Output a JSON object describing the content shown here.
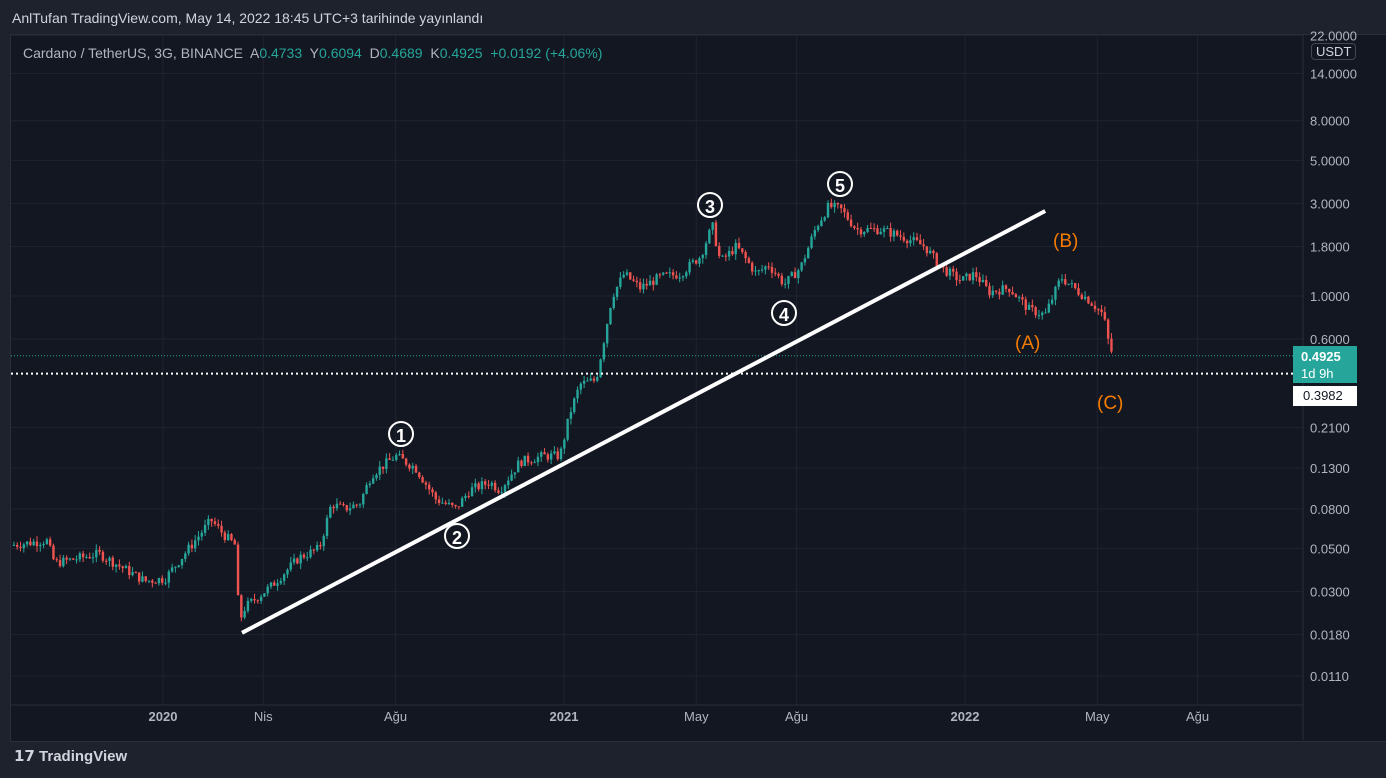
{
  "header": {
    "published": "AnlTufan TradingView.com, May 14, 2022 18:45 UTC+3 tarihinde yayınlandı"
  },
  "legend": {
    "symbol": "Cardano / TetherUS, 3G, BINANCE",
    "o_label": "A",
    "o": "0.4733",
    "h_label": "Y",
    "h": "0.6094",
    "l_label": "D",
    "l": "0.4689",
    "c_label": "K",
    "c": "0.4925",
    "change": "+0.0192",
    "change_pct": "(+4.06%)"
  },
  "price_axis": {
    "currency": "USDT",
    "last_price": "0.4925",
    "countdown": "1d 9h",
    "low_marker": "0.3982"
  },
  "logo": "TradingView",
  "colors": {
    "up": "#26a69a",
    "down": "#ef5350",
    "wave_abc": "#f57c00"
  },
  "waves": {
    "w1": "1",
    "w2": "2",
    "w3": "3",
    "w4": "4",
    "w5": "5",
    "a": "(A)",
    "b": "(B)",
    "c": "(C)"
  },
  "chart_data": {
    "type": "candlestick",
    "scale": "log",
    "title": "Cardano / TetherUS, 3G, BINANCE",
    "yticks": [
      22,
      14,
      8,
      5,
      3,
      1.8,
      1,
      0.6,
      0.21,
      0.13,
      0.08,
      0.05,
      0.03,
      0.018,
      0.011
    ],
    "ytick_labels": [
      "22.0000",
      "14.0000",
      "8.0000",
      "5.0000",
      "3.0000",
      "1.8000",
      "1.0000",
      "0.6000",
      "0.2100",
      "0.1300",
      "0.0800",
      "0.0500",
      "0.0300",
      "0.0180",
      "0.0110"
    ],
    "xticks": [
      2020.0,
      2020.25,
      2020.58,
      2021.0,
      2021.33,
      2021.58,
      2022.0,
      2022.33,
      2022.58
    ],
    "xtick_labels": [
      "2020",
      "Nis",
      "Ağu",
      "2021",
      "May",
      "Ağu",
      "2022",
      "May",
      "Ağu"
    ],
    "price_path": [
      [
        2019.62,
        0.052
      ],
      [
        2019.71,
        0.055
      ],
      [
        2019.73,
        0.042
      ],
      [
        2019.84,
        0.047
      ],
      [
        2019.955,
        0.034
      ],
      [
        2020.005,
        0.035
      ],
      [
        2020.08,
        0.055
      ],
      [
        2020.12,
        0.07
      ],
      [
        2020.155,
        0.058
      ],
      [
        2020.18,
        0.052
      ],
      [
        2020.19,
        0.021
      ],
      [
        2020.205,
        0.025
      ],
      [
        2020.27,
        0.032
      ],
      [
        2020.34,
        0.045
      ],
      [
        2020.39,
        0.05
      ],
      [
        2020.42,
        0.085
      ],
      [
        2020.45,
        0.08
      ],
      [
        2020.49,
        0.085
      ],
      [
        2020.52,
        0.12
      ],
      [
        2020.58,
        0.15
      ],
      [
        2020.63,
        0.13
      ],
      [
        2020.68,
        0.09
      ],
      [
        2020.73,
        0.08
      ],
      [
        2020.765,
        0.1
      ],
      [
        2020.815,
        0.11
      ],
      [
        2020.84,
        0.1
      ],
      [
        2020.89,
        0.14
      ],
      [
        2020.95,
        0.15
      ],
      [
        2020.99,
        0.15
      ],
      [
        2021.015,
        0.25
      ],
      [
        2021.04,
        0.35
      ],
      [
        2021.08,
        0.37
      ],
      [
        2021.1,
        0.6
      ],
      [
        2021.12,
        1.0
      ],
      [
        2021.15,
        1.3
      ],
      [
        2021.19,
        1.1
      ],
      [
        2021.24,
        1.25
      ],
      [
        2021.29,
        1.3
      ],
      [
        2021.34,
        1.6
      ],
      [
        2021.37,
        2.3
      ],
      [
        2021.39,
        1.5
      ],
      [
        2021.43,
        1.8
      ],
      [
        2021.48,
        1.3
      ],
      [
        2021.51,
        1.45
      ],
      [
        2021.55,
        1.15
      ],
      [
        2021.59,
        1.4
      ],
      [
        2021.63,
        2.3
      ],
      [
        2021.66,
        2.9
      ],
      [
        2021.69,
        2.8
      ],
      [
        2021.73,
        2.2
      ],
      [
        2021.79,
        2.2
      ],
      [
        2021.85,
        2.0
      ],
      [
        2021.9,
        1.8
      ],
      [
        2021.94,
        1.4
      ],
      [
        2021.99,
        1.2
      ],
      [
        2022.025,
        1.3
      ],
      [
        2022.06,
        1.05
      ],
      [
        2022.11,
        1.1
      ],
      [
        2022.16,
        0.85
      ],
      [
        2022.2,
        0.8
      ],
      [
        2022.24,
        1.25
      ],
      [
        2022.26,
        1.15
      ],
      [
        2022.31,
        0.95
      ],
      [
        2022.345,
        0.8
      ],
      [
        2022.36,
        0.55
      ],
      [
        2022.37,
        0.4925
      ]
    ],
    "trendline": [
      [
        2020.197,
        0.0184
      ],
      [
        2022.2,
        2.74
      ]
    ],
    "hlines": [
      {
        "price": 0.4925,
        "style": "dotted",
        "color": "#26a69a"
      },
      {
        "price": 0.3982,
        "style": "dotted",
        "color": "#ffffff"
      }
    ]
  }
}
